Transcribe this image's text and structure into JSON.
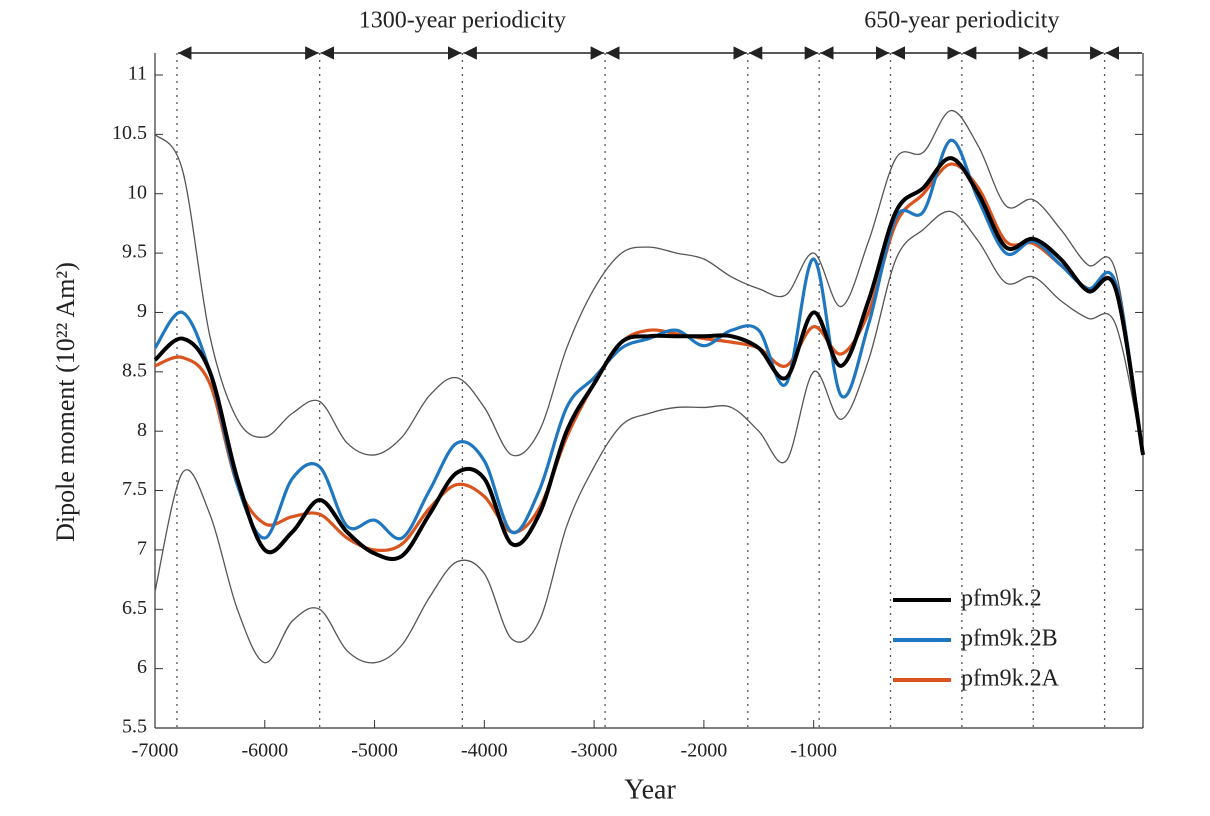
{
  "chart_data": {
    "type": "line",
    "x_label": "Year",
    "y_label": "Dipole moment (10²² Am²)",
    "x": [
      -7000,
      -6750,
      -6500,
      -6250,
      -6000,
      -5750,
      -5500,
      -5250,
      -5000,
      -4750,
      -4500,
      -4250,
      -4000,
      -3750,
      -3500,
      -3250,
      -3000,
      -2750,
      -2500,
      -2250,
      -2000,
      -1750,
      -1500,
      -1250,
      -1000,
      -750,
      -500,
      -250,
      0,
      250,
      500,
      750,
      1000,
      1250,
      1500,
      1750,
      2000
    ],
    "series": [
      {
        "color": "#555555",
        "values": [
          10.5,
          10.2,
          8.8,
          8.1,
          7.95,
          8.15,
          8.25,
          7.9,
          7.8,
          7.95,
          8.3,
          8.45,
          8.2,
          7.8,
          8.0,
          8.7,
          9.2,
          9.5,
          9.55,
          9.5,
          9.45,
          9.3,
          9.2,
          9.15,
          9.5,
          9.05,
          9.6,
          10.3,
          10.35,
          10.7,
          10.4,
          9.9,
          9.95,
          9.7,
          9.4,
          9.35,
          7.8
        ]
      },
      {
        "color": "#555555",
        "values": [
          6.65,
          7.65,
          7.3,
          6.5,
          6.05,
          6.4,
          6.5,
          6.15,
          6.05,
          6.2,
          6.6,
          6.9,
          6.8,
          6.25,
          6.4,
          7.2,
          7.7,
          8.05,
          8.15,
          8.2,
          8.2,
          8.2,
          8.0,
          7.75,
          8.5,
          8.1,
          8.6,
          9.45,
          9.7,
          9.85,
          9.6,
          9.25,
          9.3,
          9.1,
          8.95,
          8.9,
          7.8
        ]
      },
      {
        "name": "pfm9k.2A",
        "color": "#d9541e",
        "values": [
          8.55,
          8.62,
          8.4,
          7.55,
          7.22,
          7.28,
          7.3,
          7.1,
          7.0,
          7.05,
          7.35,
          7.55,
          7.45,
          7.15,
          7.35,
          7.95,
          8.4,
          8.75,
          8.85,
          8.82,
          8.78,
          8.75,
          8.7,
          8.55,
          8.88,
          8.65,
          9.0,
          9.75,
          10.0,
          10.25,
          10.05,
          9.6,
          9.58,
          9.4,
          9.2,
          9.2,
          7.8
        ]
      },
      {
        "name": "pfm9k.2B",
        "color": "#1f77c0",
        "values": [
          8.7,
          9.0,
          8.5,
          7.55,
          7.1,
          7.6,
          7.7,
          7.2,
          7.25,
          7.1,
          7.5,
          7.9,
          7.75,
          7.15,
          7.5,
          8.2,
          8.45,
          8.7,
          8.78,
          8.85,
          8.72,
          8.85,
          8.85,
          8.4,
          9.45,
          8.3,
          8.9,
          9.8,
          9.85,
          10.45,
          9.95,
          9.5,
          9.6,
          9.4,
          9.2,
          9.25,
          7.8
        ]
      },
      {
        "name": "pfm9k.2",
        "color": "#000000",
        "values": [
          8.6,
          8.78,
          8.5,
          7.6,
          7.0,
          7.15,
          7.42,
          7.15,
          6.97,
          6.95,
          7.3,
          7.65,
          7.6,
          7.05,
          7.3,
          8.0,
          8.4,
          8.75,
          8.8,
          8.8,
          8.8,
          8.8,
          8.7,
          8.45,
          9.0,
          8.55,
          9.1,
          9.85,
          10.05,
          10.3,
          10.0,
          9.55,
          9.62,
          9.45,
          9.18,
          9.2,
          7.8
        ]
      }
    ],
    "xlim": [
      -7000,
      2000
    ],
    "xticks": [
      -7000,
      -6000,
      -5000,
      -4000,
      -3000,
      -2000,
      -1000
    ],
    "ylim": [
      5.5,
      11
    ],
    "yticks": [
      5.5,
      6,
      6.5,
      7,
      7.5,
      8,
      8.5,
      9,
      9.5,
      10,
      10.5,
      11
    ],
    "periodicity_markers": [
      -6800,
      -5500,
      -4200,
      -2900,
      -1600,
      -950,
      -300,
      350,
      1000,
      1650
    ],
    "periodicity_labels": [
      {
        "text": "1300-year periodicity",
        "x": -4200
      },
      {
        "text": "650-year periodicity",
        "x": 350
      }
    ],
    "legend_position": "lower right"
  }
}
